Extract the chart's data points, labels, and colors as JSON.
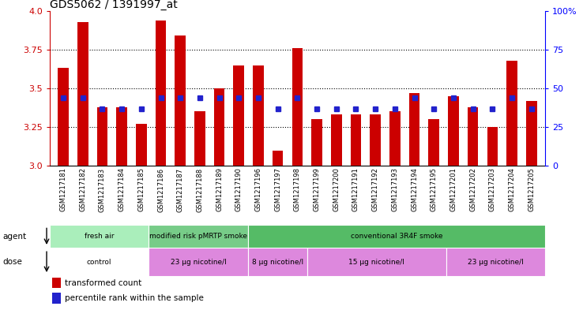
{
  "title": "GDS5062 / 1391997_at",
  "samples": [
    "GSM1217181",
    "GSM1217182",
    "GSM1217183",
    "GSM1217184",
    "GSM1217185",
    "GSM1217186",
    "GSM1217187",
    "GSM1217188",
    "GSM1217189",
    "GSM1217190",
    "GSM1217196",
    "GSM1217197",
    "GSM1217198",
    "GSM1217199",
    "GSM1217200",
    "GSM1217191",
    "GSM1217192",
    "GSM1217193",
    "GSM1217194",
    "GSM1217195",
    "GSM1217201",
    "GSM1217202",
    "GSM1217203",
    "GSM1217204",
    "GSM1217205"
  ],
  "transformed_count": [
    3.63,
    3.93,
    3.38,
    3.38,
    3.27,
    3.94,
    3.84,
    3.35,
    3.5,
    3.65,
    3.65,
    3.1,
    3.76,
    3.3,
    3.33,
    3.33,
    3.33,
    3.35,
    3.47,
    3.3,
    3.45,
    3.38,
    3.25,
    3.68,
    3.42
  ],
  "percentile_rank": [
    44,
    44,
    37,
    37,
    37,
    44,
    44,
    44,
    44,
    44,
    44,
    37,
    44,
    37,
    37,
    37,
    37,
    37,
    44,
    37,
    44,
    37,
    37,
    44,
    37
  ],
  "ylim": [
    3.0,
    4.0
  ],
  "yticks": [
    3.0,
    3.25,
    3.5,
    3.75,
    4.0
  ],
  "right_yticks": [
    0,
    25,
    50,
    75,
    100
  ],
  "bar_color": "#cc0000",
  "dot_color": "#2222cc",
  "agent_groups": [
    {
      "label": "fresh air",
      "start": 0,
      "end": 5,
      "color": "#aaeebb"
    },
    {
      "label": "modified risk pMRTP smoke",
      "start": 5,
      "end": 10,
      "color": "#77cc88"
    },
    {
      "label": "conventional 3R4F smoke",
      "start": 10,
      "end": 25,
      "color": "#55bb66"
    }
  ],
  "dose_groups": [
    {
      "label": "control",
      "start": 0,
      "end": 5,
      "color": "#ffffff"
    },
    {
      "label": "23 μg nicotine/l",
      "start": 5,
      "end": 10,
      "color": "#dd88dd"
    },
    {
      "label": "8 μg nicotine/l",
      "start": 10,
      "end": 13,
      "color": "#dd88dd"
    },
    {
      "label": "15 μg nicotine/l",
      "start": 13,
      "end": 20,
      "color": "#dd88dd"
    },
    {
      "label": "23 μg nicotine/l",
      "start": 20,
      "end": 25,
      "color": "#dd88dd"
    }
  ]
}
